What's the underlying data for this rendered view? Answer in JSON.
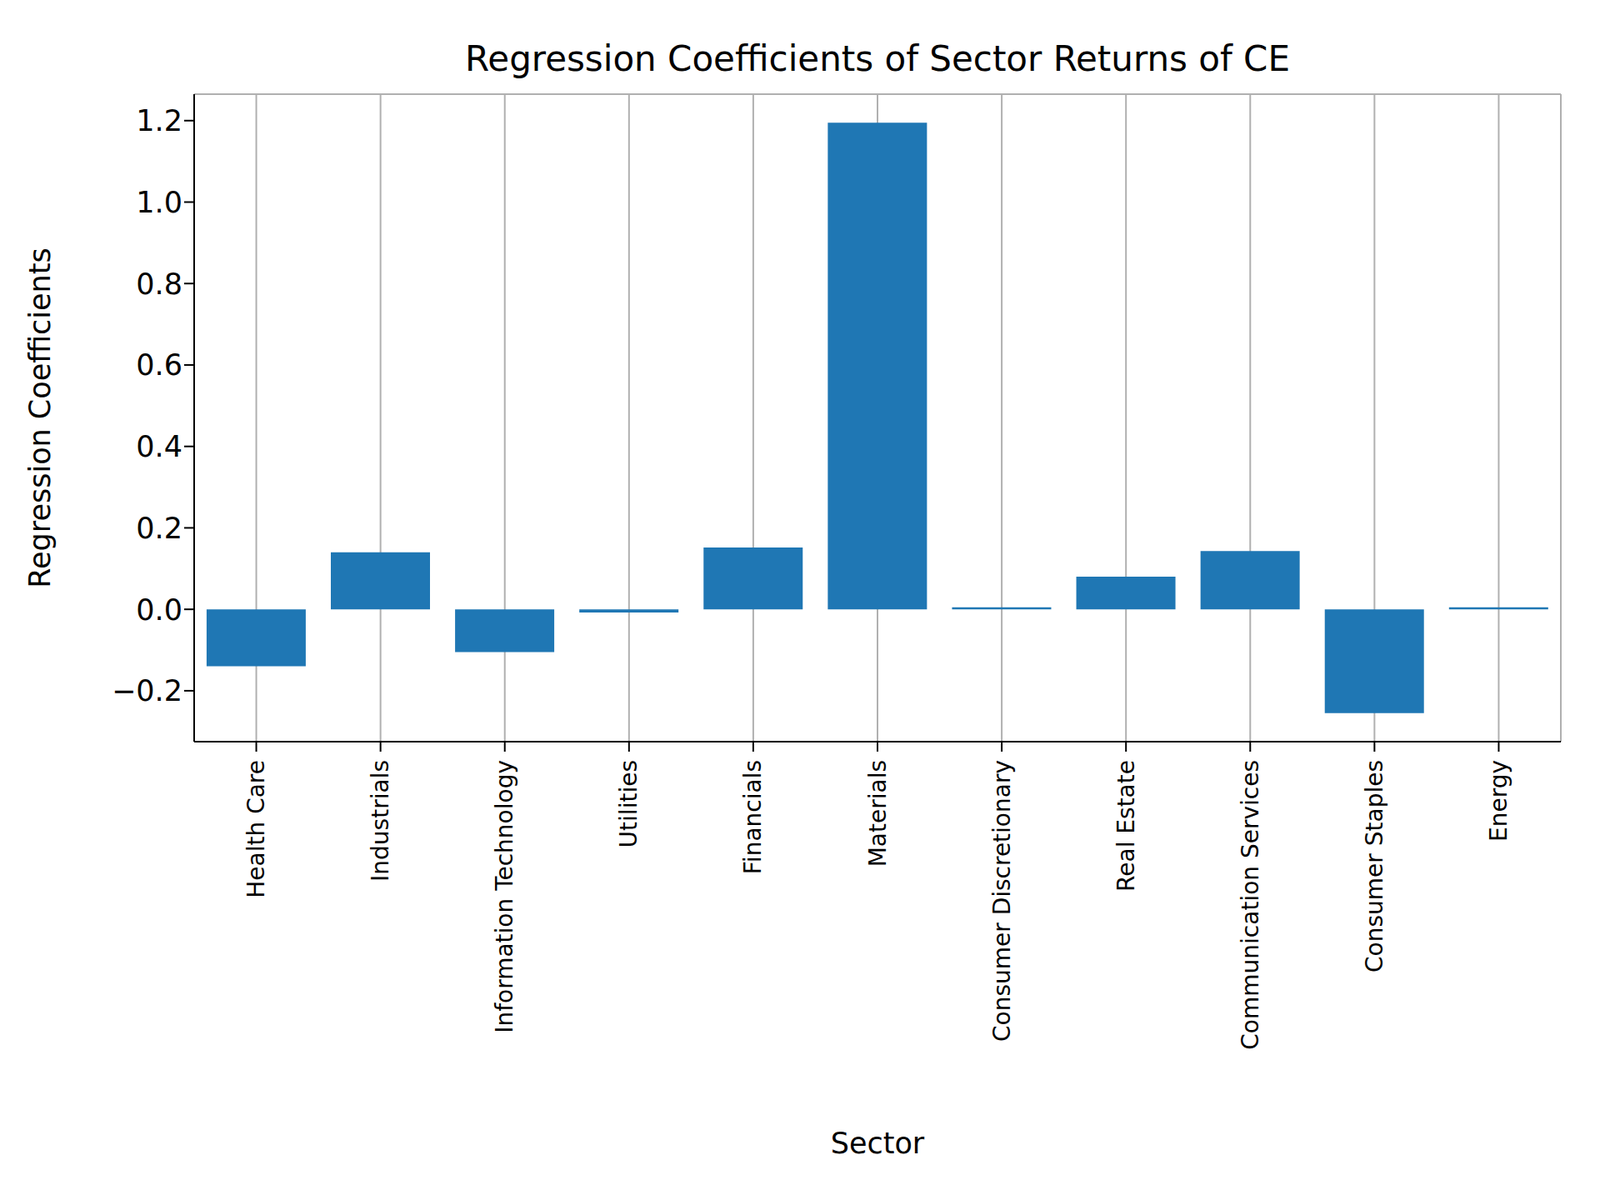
{
  "chart_data": {
    "type": "bar",
    "title": "Regression Coefficients of Sector Returns of CE",
    "x_label": "Sector",
    "y_label": "Regression Coefficients",
    "categories": [
      "Health Care",
      "Industrials",
      "Information Technology",
      "Utilities",
      "Financials",
      "Materials",
      "Consumer Discretionary",
      "Real Estate",
      "Communication Services",
      "Consumer Staples",
      "Energy"
    ],
    "values": [
      -0.14,
      0.14,
      -0.105,
      -0.008,
      0.152,
      1.195,
      0.005,
      0.08,
      0.143,
      -0.255,
      0.005
    ],
    "color": "#1f77b4",
    "ylim": [
      -0.325,
      1.265
    ],
    "yticks": [
      {
        "value": -0.2,
        "label": "−0.2"
      },
      {
        "value": 0,
        "label": "0.0"
      },
      0.2,
      0.4,
      0.6,
      0.8,
      {
        "value": 1,
        "label": "1.0"
      },
      1.2
    ],
    "grid": true
  }
}
